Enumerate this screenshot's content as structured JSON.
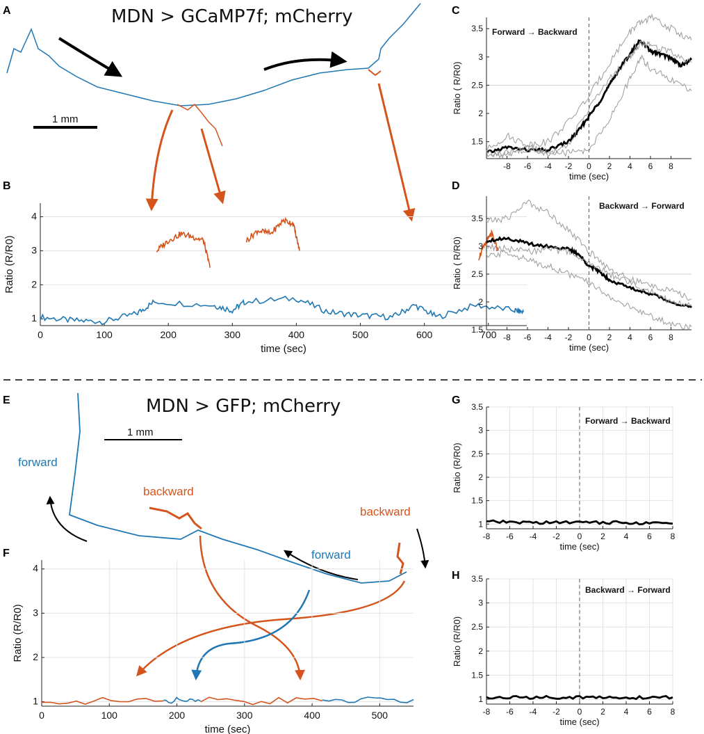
{
  "colors": {
    "blue": "#1f77b4",
    "orange": "#d4541c",
    "black": "#000000",
    "gray": "#9a9a9a",
    "grid": "#e3e3e3"
  },
  "panels": {
    "A": {
      "label": "A",
      "title": "MDN > GCaMP7f; mCherry",
      "scalebar": "1 mm"
    },
    "E": {
      "label": "E",
      "title": "MDN > GFP; mCherry",
      "scalebar": "1 mm",
      "forward_label": "forward",
      "backward_label": "backward"
    }
  },
  "chart_data": [
    {
      "id": "B",
      "label": "B",
      "type": "line",
      "title": "",
      "xlabel": "time (sec)",
      "ylabel": "Ratio (R/R0)",
      "xlim": [
        0,
        760
      ],
      "ylim": [
        0.8,
        4.4
      ],
      "xticks": [
        0,
        100,
        200,
        300,
        400,
        500,
        600,
        700
      ],
      "yticks": [
        1,
        2,
        3,
        4
      ],
      "series": [
        {
          "name": "forward",
          "color": "#1f77b4",
          "x": [
            0,
            50,
            100,
            150,
            178,
            270,
            300,
            320,
            400,
            450,
            500,
            550,
            585,
            620,
            680,
            740,
            755
          ],
          "y": [
            1.05,
            0.95,
            0.92,
            1.15,
            1.5,
            1.4,
            1.25,
            1.5,
            1.6,
            1.2,
            1.1,
            1.05,
            1.4,
            1.05,
            1.4,
            1.25,
            1.2
          ]
        },
        {
          "name": "backward",
          "color": "#d4541c",
          "segments": [
            {
              "x": [
                182,
                200,
                220,
                240,
                255,
                265
              ],
              "y": [
                3.0,
                3.3,
                3.5,
                3.4,
                3.3,
                2.5
              ]
            },
            {
              "x": [
                322,
                340,
                360,
                380,
                395,
                405
              ],
              "y": [
                3.3,
                3.6,
                3.5,
                3.9,
                3.8,
                3.0
              ]
            },
            {
              "x": [
                685,
                695,
                705,
                715
              ],
              "y": [
                2.8,
                3.2,
                3.5,
                3.0
              ]
            }
          ]
        }
      ]
    },
    {
      "id": "C",
      "label": "C",
      "type": "line",
      "annotation": "Forward → Backward",
      "xlabel": "time (sec)",
      "ylabel": "Ratio ( R/R0)",
      "xlim": [
        -10,
        10
      ],
      "ylim": [
        1.2,
        3.7
      ],
      "xticks": [
        -8,
        -6,
        -4,
        -2,
        0,
        2,
        4,
        6,
        8
      ],
      "yticks": [
        1.5,
        2,
        2.5,
        3,
        3.5
      ],
      "series": [
        {
          "name": "mean",
          "color": "#000000",
          "x": [
            -10,
            -8,
            -6,
            -4,
            -2,
            -1,
            0,
            1,
            2,
            3,
            4,
            5,
            6,
            7,
            8,
            9,
            10
          ],
          "y": [
            1.3,
            1.4,
            1.35,
            1.35,
            1.5,
            1.7,
            1.95,
            2.2,
            2.5,
            2.8,
            3.05,
            3.3,
            3.1,
            3.05,
            2.98,
            2.85,
            2.95
          ]
        },
        {
          "name": "trial-1",
          "color": "#9a9a9a",
          "x": [
            -10,
            -8,
            -6,
            -4,
            -2,
            0,
            2,
            4,
            5,
            6,
            8,
            10
          ],
          "y": [
            1.35,
            1.6,
            1.45,
            1.5,
            1.85,
            2.3,
            2.9,
            3.45,
            3.6,
            3.7,
            3.5,
            3.3
          ]
        },
        {
          "name": "trial-2",
          "color": "#9a9a9a",
          "x": [
            -10,
            -8,
            -6,
            -4,
            -2,
            0,
            2,
            4,
            5,
            6,
            8,
            10
          ],
          "y": [
            1.25,
            1.3,
            1.35,
            1.3,
            1.45,
            2.1,
            2.6,
            3.0,
            3.25,
            3.2,
            3.1,
            2.9
          ]
        },
        {
          "name": "trial-3",
          "color": "#9a9a9a",
          "x": [
            -10,
            -8,
            -6,
            -4,
            -2,
            0,
            2,
            4,
            5,
            6,
            8,
            10
          ],
          "y": [
            1.3,
            1.25,
            1.4,
            1.3,
            1.3,
            1.35,
            1.9,
            2.6,
            3.0,
            2.8,
            2.6,
            2.4
          ]
        }
      ]
    },
    {
      "id": "D",
      "label": "D",
      "type": "line",
      "annotation": "Backward → Forward",
      "xlabel": "time (sec)",
      "ylabel": "Ratio ( R/R0)",
      "xlim": [
        -10,
        10
      ],
      "ylim": [
        1.5,
        3.9
      ],
      "xticks": [
        -8,
        -6,
        -4,
        -2,
        0,
        2,
        4,
        6,
        8
      ],
      "yticks": [
        1.5,
        2,
        2.5,
        3,
        3.5
      ],
      "series": [
        {
          "name": "mean",
          "color": "#000000",
          "x": [
            -10,
            -8,
            -6,
            -4,
            -2,
            -1,
            0,
            1,
            2,
            4,
            6,
            8,
            10
          ],
          "y": [
            3.1,
            3.15,
            3.05,
            3.0,
            2.95,
            2.85,
            2.65,
            2.55,
            2.4,
            2.25,
            2.15,
            2.0,
            1.9
          ]
        },
        {
          "name": "trial-1",
          "color": "#9a9a9a",
          "x": [
            -10,
            -8,
            -6,
            -4,
            -2,
            0,
            2,
            4,
            6,
            8,
            10
          ],
          "y": [
            3.45,
            3.5,
            3.8,
            3.6,
            3.3,
            2.9,
            2.6,
            2.4,
            2.3,
            2.2,
            2.05
          ]
        },
        {
          "name": "trial-2",
          "color": "#9a9a9a",
          "x": [
            -10,
            -8,
            -6,
            -4,
            -2,
            0,
            2,
            4,
            6,
            8,
            10
          ],
          "y": [
            3.0,
            2.95,
            2.9,
            2.95,
            2.9,
            2.7,
            2.5,
            2.35,
            2.2,
            2.0,
            1.95
          ]
        },
        {
          "name": "trial-3",
          "color": "#9a9a9a",
          "x": [
            -10,
            -8,
            -6,
            -4,
            -2,
            0,
            2,
            4,
            6,
            8,
            10
          ],
          "y": [
            2.8,
            2.9,
            2.75,
            2.65,
            2.5,
            2.35,
            2.1,
            1.9,
            1.75,
            1.6,
            1.55
          ]
        }
      ]
    },
    {
      "id": "F",
      "label": "F",
      "type": "line",
      "xlabel": "time (sec)",
      "ylabel": "Ratio (R/R0)",
      "xlim": [
        0,
        550
      ],
      "ylim": [
        0.9,
        4.2
      ],
      "xticks": [
        0,
        100,
        200,
        300,
        400,
        500
      ],
      "yticks": [
        1,
        2,
        3,
        4
      ],
      "series": [
        {
          "name": "backward",
          "color": "#d4541c",
          "segments": [
            {
              "x": [
                0,
                180
              ],
              "y": [
                1.02,
                1.02
              ]
            },
            {
              "x": [
                235,
                415
              ],
              "y": [
                1.02,
                1.02
              ]
            }
          ]
        },
        {
          "name": "forward",
          "color": "#1f77b4",
          "segments": [
            {
              "x": [
                180,
                235
              ],
              "y": [
                1.02,
                1.02
              ]
            },
            {
              "x": [
                415,
                550
              ],
              "y": [
                1.02,
                1.05
              ]
            }
          ]
        }
      ]
    },
    {
      "id": "G",
      "label": "G",
      "type": "line",
      "annotation": "Forward → Backward",
      "xlabel": "time (sec)",
      "ylabel": "Ratio (R/R0)",
      "xlim": [
        -8,
        8
      ],
      "ylim": [
        0.9,
        3.5
      ],
      "xticks": [
        -8,
        -6,
        -4,
        -2,
        0,
        2,
        4,
        6,
        8
      ],
      "yticks": [
        1,
        1.5,
        2,
        2.5,
        3,
        3.5
      ],
      "series": [
        {
          "name": "mean",
          "color": "#000000",
          "x": [
            -8,
            -4,
            0,
            4,
            8
          ],
          "y": [
            1.05,
            1.03,
            1.04,
            1.03,
            1.01
          ]
        }
      ]
    },
    {
      "id": "H",
      "label": "H",
      "type": "line",
      "annotation": "Backward → Forward",
      "xlabel": "time (sec)",
      "ylabel": "Ratio (R/R0)",
      "xlim": [
        -8,
        8
      ],
      "ylim": [
        0.9,
        3.5
      ],
      "xticks": [
        -8,
        -6,
        -4,
        -2,
        0,
        2,
        4,
        6,
        8
      ],
      "yticks": [
        1,
        1.5,
        2,
        2.5,
        3,
        3.5
      ],
      "series": [
        {
          "name": "mean",
          "color": "#000000",
          "x": [
            -8,
            -4,
            0,
            4,
            8
          ],
          "y": [
            1.03,
            1.04,
            1.04,
            1.03,
            1.04
          ]
        }
      ]
    }
  ]
}
